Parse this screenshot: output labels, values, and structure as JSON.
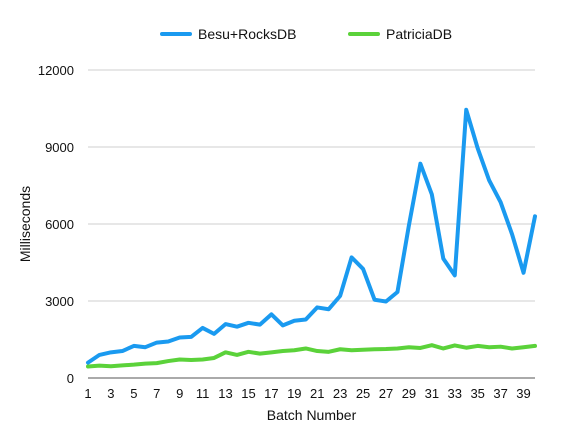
{
  "chart_data": {
    "type": "line",
    "title": "",
    "xlabel": "Batch Number",
    "ylabel": "Milliseconds",
    "x": [
      1,
      2,
      3,
      4,
      5,
      6,
      7,
      8,
      9,
      10,
      11,
      12,
      13,
      14,
      15,
      16,
      17,
      18,
      19,
      20,
      21,
      22,
      23,
      24,
      25,
      26,
      27,
      28,
      29,
      30,
      31,
      32,
      33,
      34,
      35,
      36,
      37,
      38,
      39,
      40
    ],
    "x_tick_labels": [
      "1",
      "3",
      "5",
      "7",
      "9",
      "11",
      "13",
      "15",
      "17",
      "19",
      "21",
      "23",
      "25",
      "27",
      "29",
      "31",
      "33",
      "35",
      "37",
      "39"
    ],
    "y_ticks": [
      0,
      3000,
      6000,
      9000,
      12000
    ],
    "ylim": [
      0,
      12000
    ],
    "grid": true,
    "legend_position": "top-center",
    "series": [
      {
        "name": "Besu+RocksDB",
        "color": "#1a9af0",
        "values": [
          600,
          900,
          1000,
          1050,
          1250,
          1200,
          1380,
          1420,
          1580,
          1600,
          1950,
          1720,
          2100,
          2000,
          2150,
          2080,
          2480,
          2050,
          2230,
          2280,
          2750,
          2680,
          3200,
          4700,
          4250,
          3050,
          2980,
          3350,
          5950,
          8350,
          7150,
          4650,
          4000,
          10450,
          8950,
          7700,
          6850,
          5600,
          4100,
          6300
        ]
      },
      {
        "name": "PatriciaDB",
        "color": "#5bd23a",
        "values": [
          450,
          480,
          460,
          490,
          520,
          560,
          580,
          660,
          720,
          700,
          720,
          780,
          1000,
          900,
          1020,
          950,
          1000,
          1050,
          1080,
          1150,
          1050,
          1020,
          1120,
          1080,
          1100,
          1120,
          1130,
          1150,
          1200,
          1170,
          1280,
          1150,
          1270,
          1180,
          1250,
          1200,
          1220,
          1150,
          1200,
          1250
        ]
      }
    ]
  }
}
